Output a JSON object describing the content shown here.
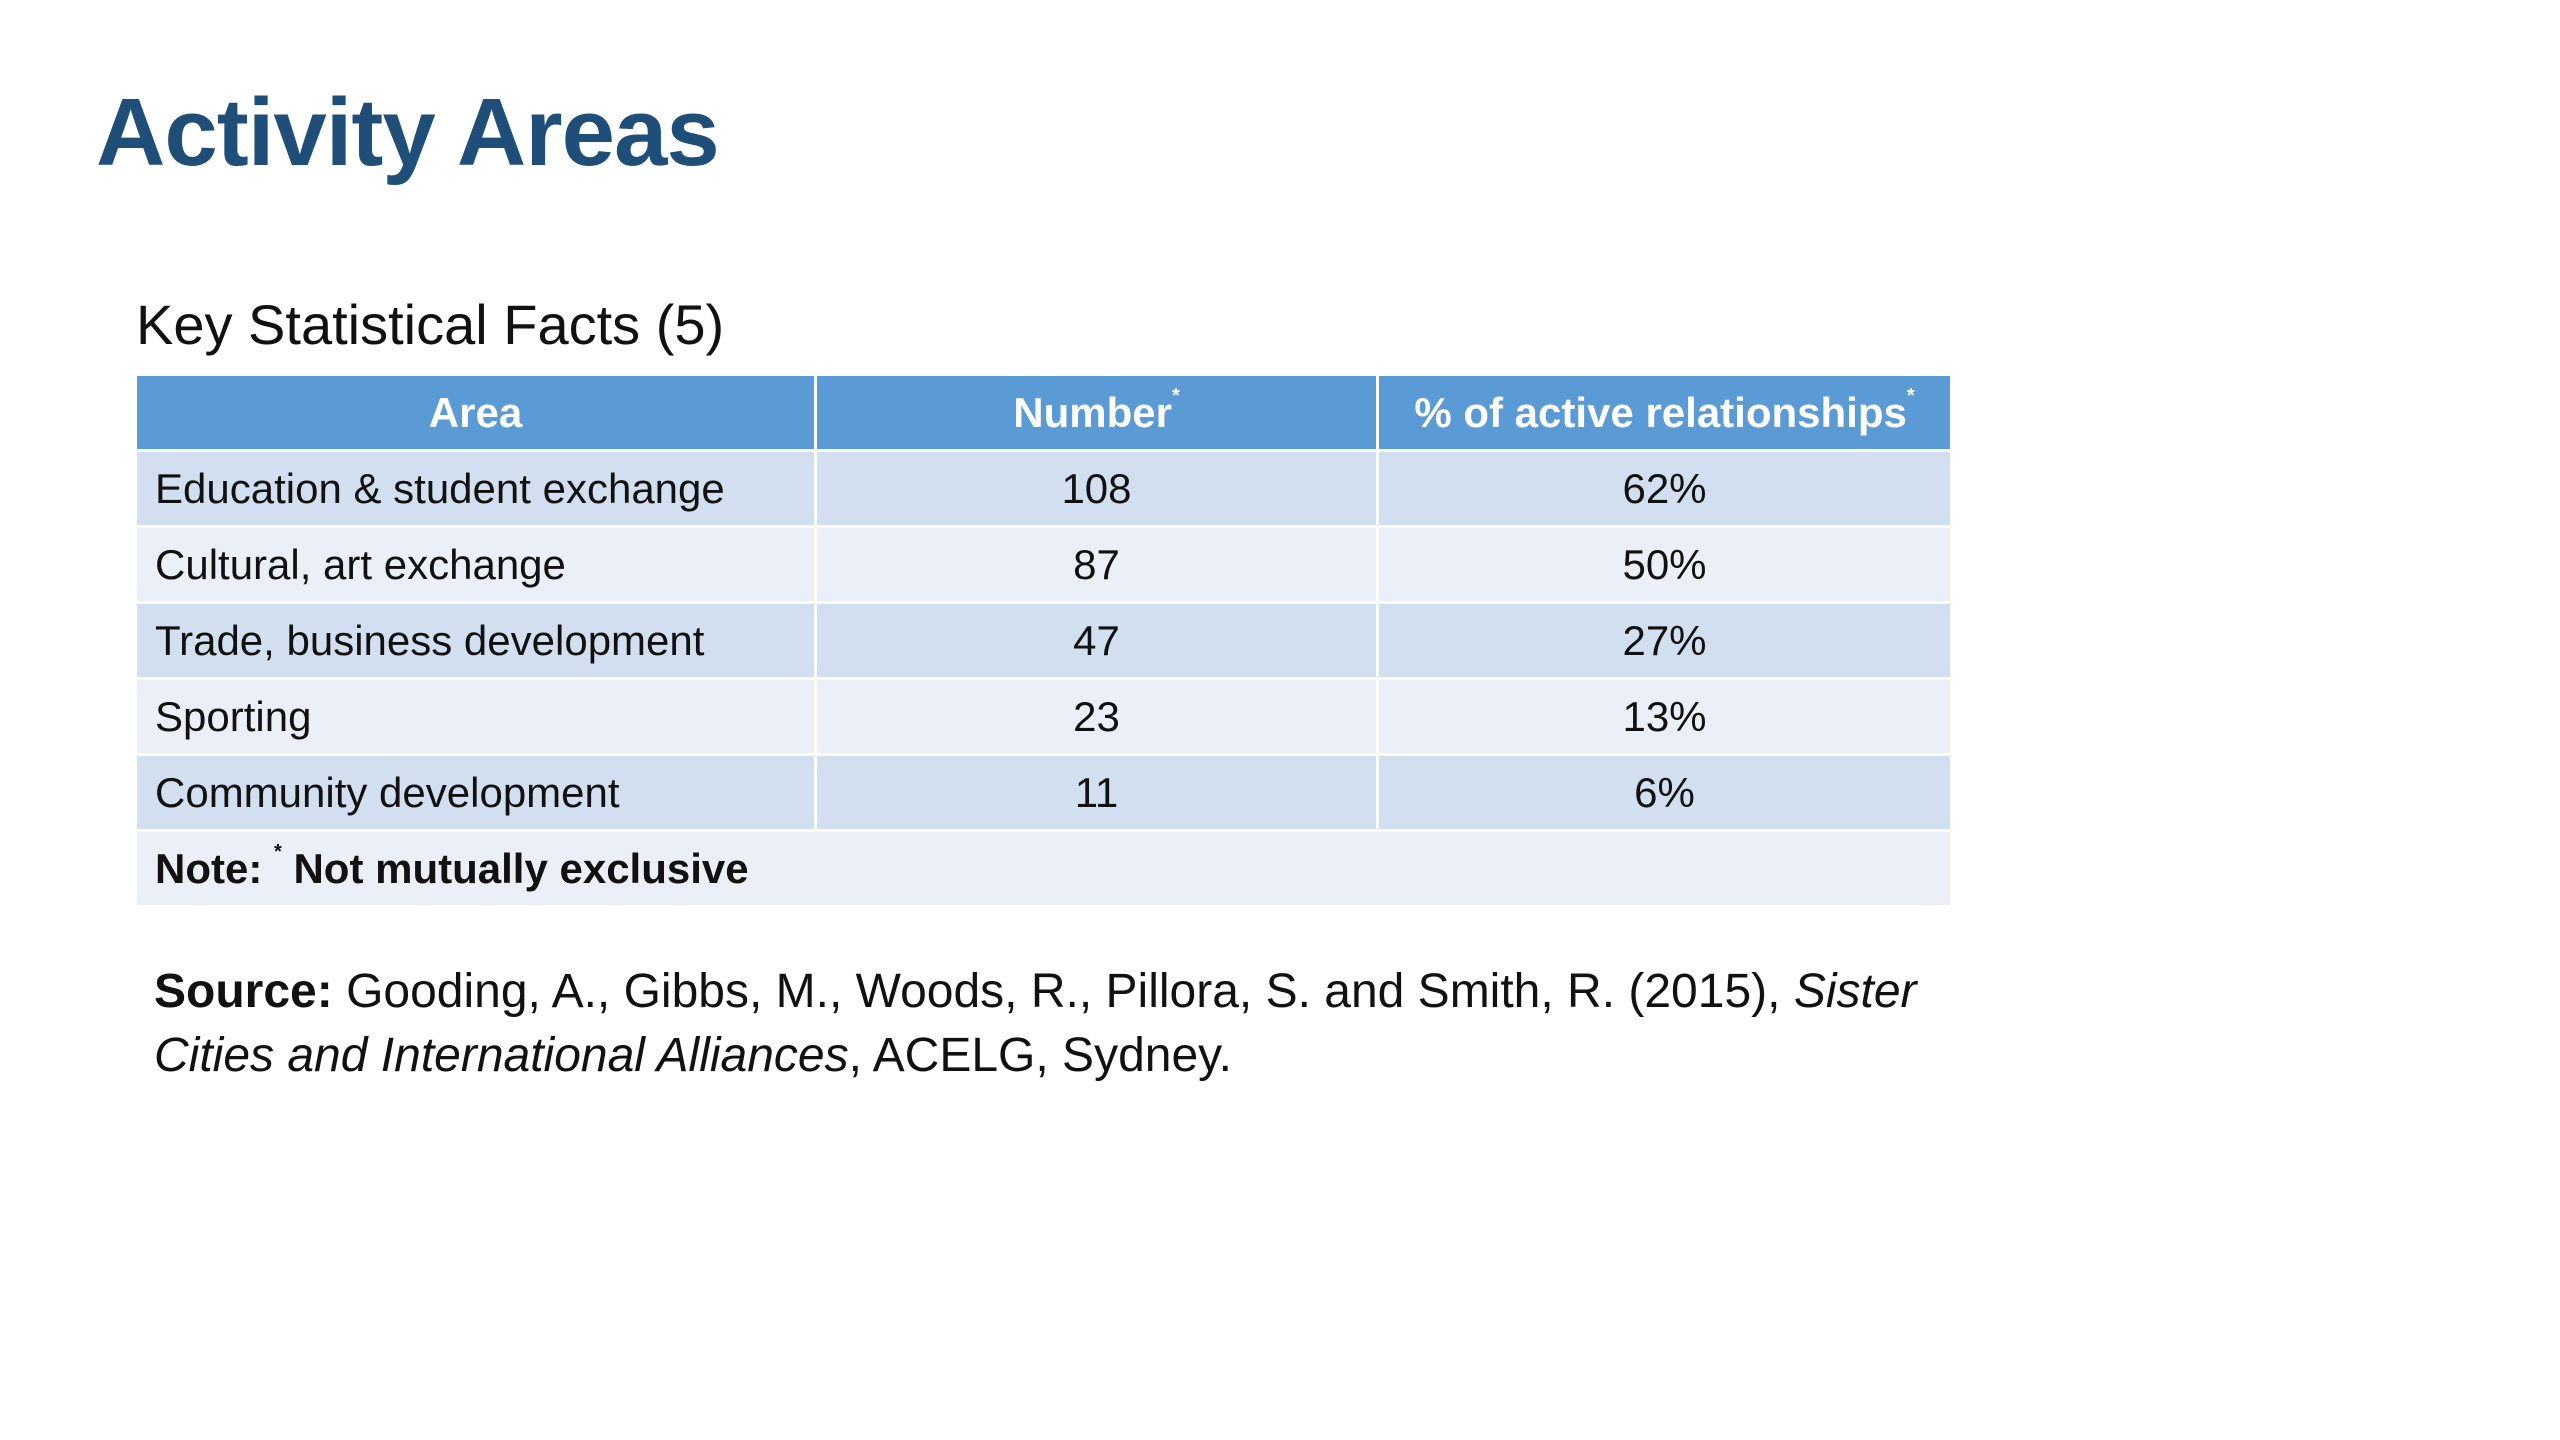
{
  "slide": {
    "title": "Activity Areas",
    "subtitle": "Key Statistical Facts (5)"
  },
  "table": {
    "headers": {
      "area": "Area",
      "number": "Number",
      "number_mark": "*",
      "percent": "% of active relationships",
      "percent_mark": "*"
    },
    "rows": [
      {
        "area": "Education & student exchange",
        "number": "108",
        "percent": "62%"
      },
      {
        "area": "Cultural, art exchange",
        "number": "87",
        "percent": "50%"
      },
      {
        "area": "Trade, business development",
        "number": "47",
        "percent": "27%"
      },
      {
        "area": "Sporting",
        "number": "23",
        "percent": "13%"
      },
      {
        "area": "Community development",
        "number": "11",
        "percent": "6%"
      }
    ],
    "note": {
      "label": "Note:",
      "mark": "*",
      "text": "Not mutually exclusive"
    }
  },
  "source": {
    "label": "Source:",
    "text_before": "Gooding, A., Gibbs, M., Woods, R., Pillora, S. and Smith, R. (2015),",
    "italic_title": "Sister Cities and International Alliances",
    "text_after": ", ACELG, Sydney."
  },
  "colors": {
    "title": "#1f4e79",
    "header_bg": "#5b9bd5",
    "row_dark": "#d2dff0",
    "row_light": "#eaeff8"
  }
}
